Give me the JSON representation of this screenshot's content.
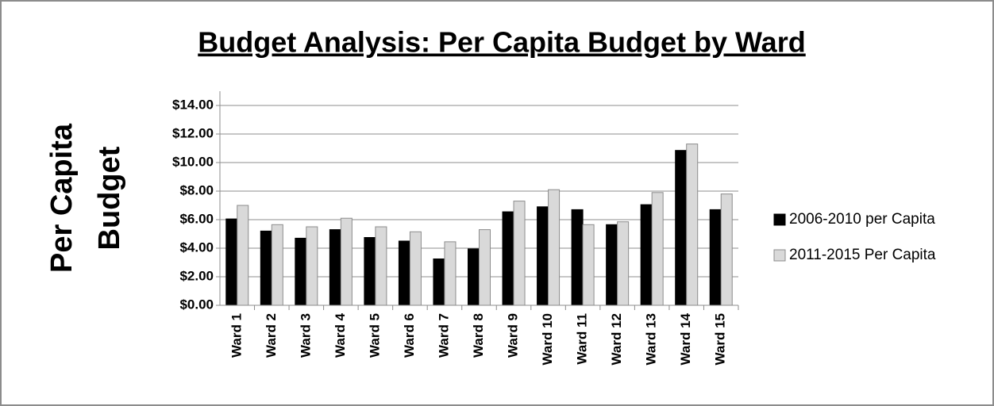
{
  "chart_data": {
    "type": "bar",
    "title": "Budget Analysis: Per Capita Budget by Ward",
    "y_label": [
      "Per Capita",
      "Budget"
    ],
    "categories": [
      "Ward 1",
      "Ward 2",
      "Ward 3",
      "Ward 4",
      "Ward 5",
      "Ward 6",
      "Ward 7",
      "Ward 8",
      "Ward 9",
      "Ward 10",
      "Ward 11",
      "Ward 12",
      "Ward 13",
      "Ward 14",
      "Ward 15"
    ],
    "series": [
      {
        "name": "2006-2010 per Capita",
        "color": "#000000",
        "values": [
          6.05,
          5.2,
          4.7,
          5.3,
          4.75,
          4.5,
          3.25,
          3.95,
          6.55,
          6.9,
          6.7,
          5.65,
          7.05,
          10.85,
          6.7
        ]
      },
      {
        "name": "2011-2015 Per Capita",
        "color": "#d9d9d9",
        "values": [
          7.0,
          5.65,
          5.5,
          6.1,
          5.5,
          5.15,
          4.45,
          5.3,
          7.3,
          8.1,
          5.65,
          5.85,
          7.9,
          11.3,
          7.8
        ]
      }
    ],
    "ylim": [
      0,
      14
    ],
    "yticks": [
      {
        "value": 0,
        "label": "$0.00"
      },
      {
        "value": 2,
        "label": "$2.00"
      },
      {
        "value": 4,
        "label": "$4.00"
      },
      {
        "value": 6,
        "label": "$6.00"
      },
      {
        "value": 8,
        "label": "$8.00"
      },
      {
        "value": 10,
        "label": "$10.00"
      },
      {
        "value": 12,
        "label": "$12.00"
      },
      {
        "value": 14,
        "label": "$14.00"
      }
    ],
    "grid": true,
    "legend": "right"
  }
}
